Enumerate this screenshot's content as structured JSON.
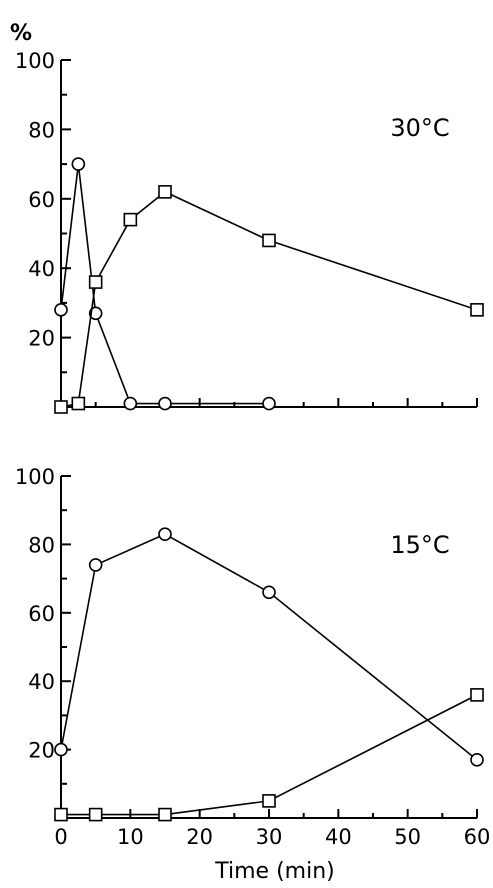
{
  "chart_data": {
    "type": "line",
    "y_unit_label": "%",
    "xlabel": "Time (min)",
    "x_ticks": [
      0,
      10,
      20,
      30,
      40,
      50,
      60
    ],
    "x_tick_labels": [
      "0",
      "10",
      "20",
      "30",
      "40",
      "50",
      "60"
    ],
    "xlim": [
      0,
      60
    ],
    "grid": false,
    "panels": [
      {
        "label": "30°C",
        "ylim": [
          0,
          100
        ],
        "y_ticks": [
          20,
          40,
          60,
          80,
          100
        ],
        "y_tick_labels": [
          "20",
          "40",
          "60",
          "80",
          "100"
        ],
        "series": [
          {
            "marker": "circle",
            "x": [
              0,
              2.5,
              5,
              10,
              15,
              30
            ],
            "y": [
              28,
              70,
              27,
              1,
              1,
              1
            ]
          },
          {
            "marker": "square",
            "x": [
              0,
              2.5,
              5,
              10,
              15,
              30,
              60
            ],
            "y": [
              0,
              1,
              36,
              54,
              62,
              48,
              28
            ]
          }
        ]
      },
      {
        "label": "15°C",
        "ylim": [
          0,
          100
        ],
        "y_ticks": [
          20,
          40,
          60,
          80,
          100
        ],
        "y_tick_labels": [
          "20",
          "40",
          "60",
          "80",
          "100"
        ],
        "series": [
          {
            "marker": "circle",
            "x": [
              0,
              5,
              15,
              30,
              60
            ],
            "y": [
              20,
              74,
              83,
              66,
              17
            ]
          },
          {
            "marker": "square",
            "x": [
              0,
              5,
              15,
              30,
              60
            ],
            "y": [
              1,
              1,
              1,
              5,
              36
            ]
          }
        ]
      }
    ]
  }
}
